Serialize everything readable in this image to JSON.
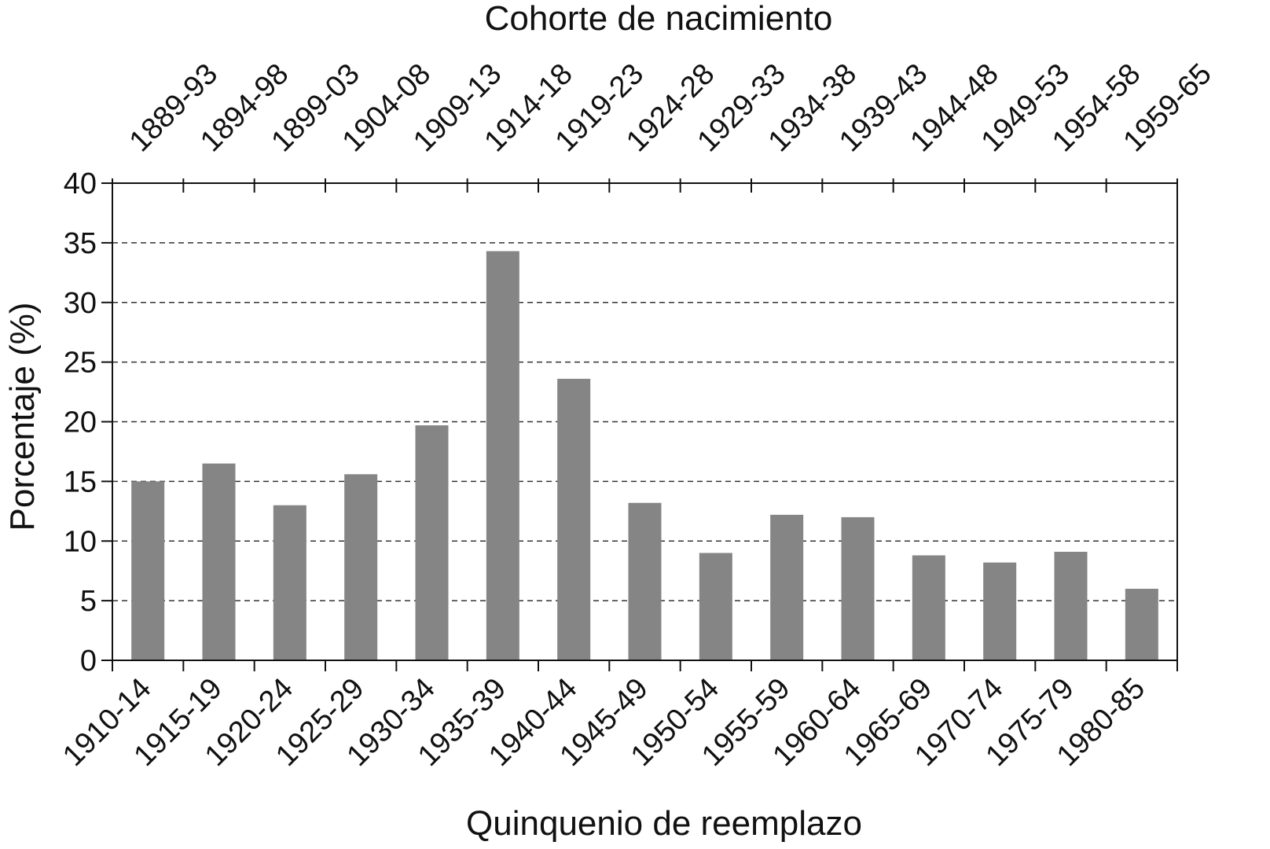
{
  "chart_data": {
    "type": "bar",
    "title": "Cohorte de nacimiento",
    "xlabel": "Quinquenio de reemplazo",
    "ylabel": "Porcentaje (%)",
    "categories": [
      "1910-14",
      "1915-19",
      "1920-24",
      "1925-29",
      "1930-34",
      "1935-39",
      "1940-44",
      "1945-49",
      "1950-54",
      "1955-59",
      "1960-64",
      "1965-69",
      "1970-74",
      "1975-79",
      "1980-85"
    ],
    "secondary_categories": [
      "1889-93",
      "1894-98",
      "1899-03",
      "1904-08",
      "1909-13",
      "1914-18",
      "1919-23",
      "1924-28",
      "1929-33",
      "1934-38",
      "1939-43",
      "1944-48",
      "1949-53",
      "1954-58",
      "1959-65"
    ],
    "values": [
      15.0,
      16.5,
      13.0,
      15.6,
      19.7,
      34.3,
      23.6,
      13.2,
      9.0,
      12.2,
      12.0,
      8.8,
      8.2,
      9.1,
      6.0
    ],
    "ylim": [
      0,
      40
    ],
    "yticks": [
      "0",
      "5",
      "10",
      "15",
      "20",
      "25",
      "30",
      "35",
      "40"
    ],
    "grid": "dashed-horizontal",
    "bar_color": "#858585"
  }
}
